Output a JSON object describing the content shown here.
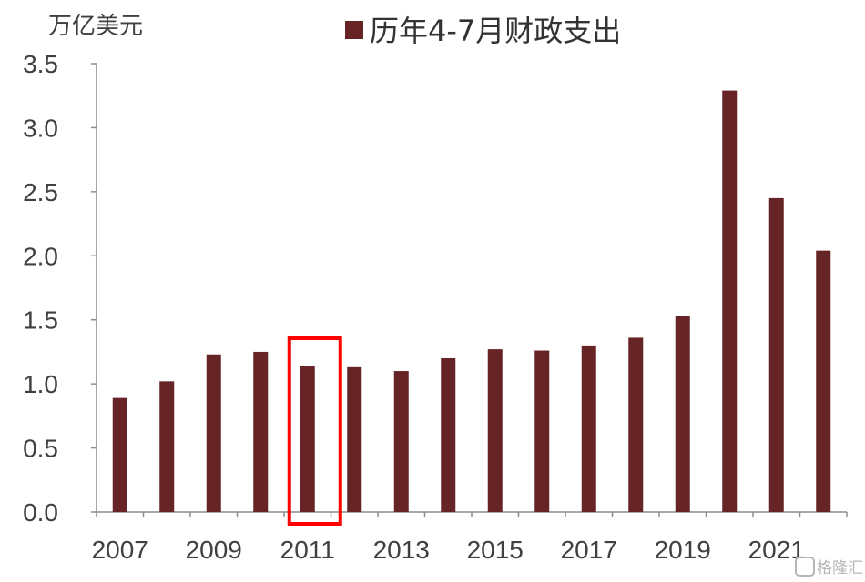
{
  "chart_data": {
    "type": "bar",
    "unit_label": "万亿美元",
    "legend": {
      "label": "历年4-7月财政支出",
      "placement": "top-center"
    },
    "series": [
      {
        "name": "历年4-7月财政支出",
        "color": "#672426",
        "values": [
          0.89,
          1.02,
          1.23,
          1.25,
          1.14,
          1.13,
          1.1,
          1.2,
          1.27,
          1.26,
          1.3,
          1.36,
          1.53,
          3.29,
          2.45,
          2.04
        ]
      }
    ],
    "categories": [
      "2007",
      "2008",
      "2009",
      "2010",
      "2011",
      "2012",
      "2013",
      "2014",
      "2015",
      "2016",
      "2017",
      "2018",
      "2019",
      "2020",
      "2021",
      "2022"
    ],
    "x_tick_labels": [
      "2007",
      "2009",
      "2011",
      "2013",
      "2015",
      "2017",
      "2019",
      "2021"
    ],
    "y_ticks": [
      "0.0",
      "0.5",
      "1.0",
      "1.5",
      "2.0",
      "2.5",
      "3.0",
      "3.5"
    ],
    "ylim": [
      0,
      3.5
    ],
    "grid": false,
    "highlight": {
      "category": "2011",
      "color": "#ff0000"
    }
  },
  "watermark": {
    "text": "格隆汇",
    "icon": "gelonghui-logo-icon"
  }
}
